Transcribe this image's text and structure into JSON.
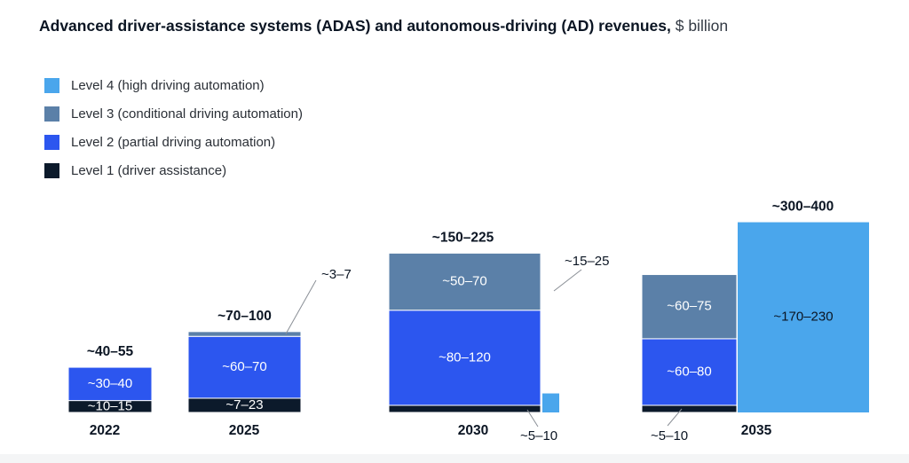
{
  "title": {
    "main": "Advanced driver-assistance systems (ADAS) and autonomous-driving (AD) revenues,",
    "unit": "$ billion"
  },
  "colors": {
    "level1": "#0c1a2b",
    "level2": "#2c56ef",
    "level3": "#5b80a8",
    "level4": "#4aa6ec",
    "label_light": "#ffffff",
    "label_dark": "#0b1523",
    "leader": "#8a8f96"
  },
  "legend": [
    {
      "key": "level4",
      "label": "Level 4 (high driving automation)"
    },
    {
      "key": "level3",
      "label": "Level 3 (conditional driving automation)"
    },
    {
      "key": "level2",
      "label": "Level 2 (partial driving automation)"
    },
    {
      "key": "level1",
      "label": "Level 1 (driver assistance)"
    }
  ],
  "chart_data": {
    "type": "bar",
    "subtype": "stacked-mekko",
    "categories": [
      "2022",
      "2025",
      "2030",
      "2035"
    ],
    "series": [
      {
        "name": "Level 1 (driver assistance)",
        "key": "level1",
        "values": [
          12.5,
          15,
          7.5,
          7.5
        ],
        "labels": [
          "~10–15",
          "~7–23",
          "~5–10",
          "~5–10"
        ]
      },
      {
        "name": "Level 2 (partial driving automation)",
        "key": "level2",
        "values": [
          35,
          65,
          100,
          70
        ],
        "labels": [
          "~30–40",
          "~60–70",
          "~80–120",
          "~60–80"
        ]
      },
      {
        "name": "Level 3 (conditional driving automation)",
        "key": "level3",
        "values": [
          0,
          5,
          60,
          67.5
        ],
        "labels": [
          "",
          "~3–7",
          "~50–70",
          "~60–75"
        ]
      },
      {
        "name": "Level 4 (high driving automation)",
        "key": "level4",
        "values": [
          0,
          0,
          20,
          200
        ],
        "labels": [
          "",
          "",
          "~15–25",
          "~170–230"
        ]
      }
    ],
    "totals": [
      "~40–55",
      "~70–100",
      "~150–225",
      "~300–400"
    ],
    "ylim": [
      0,
      225
    ]
  }
}
